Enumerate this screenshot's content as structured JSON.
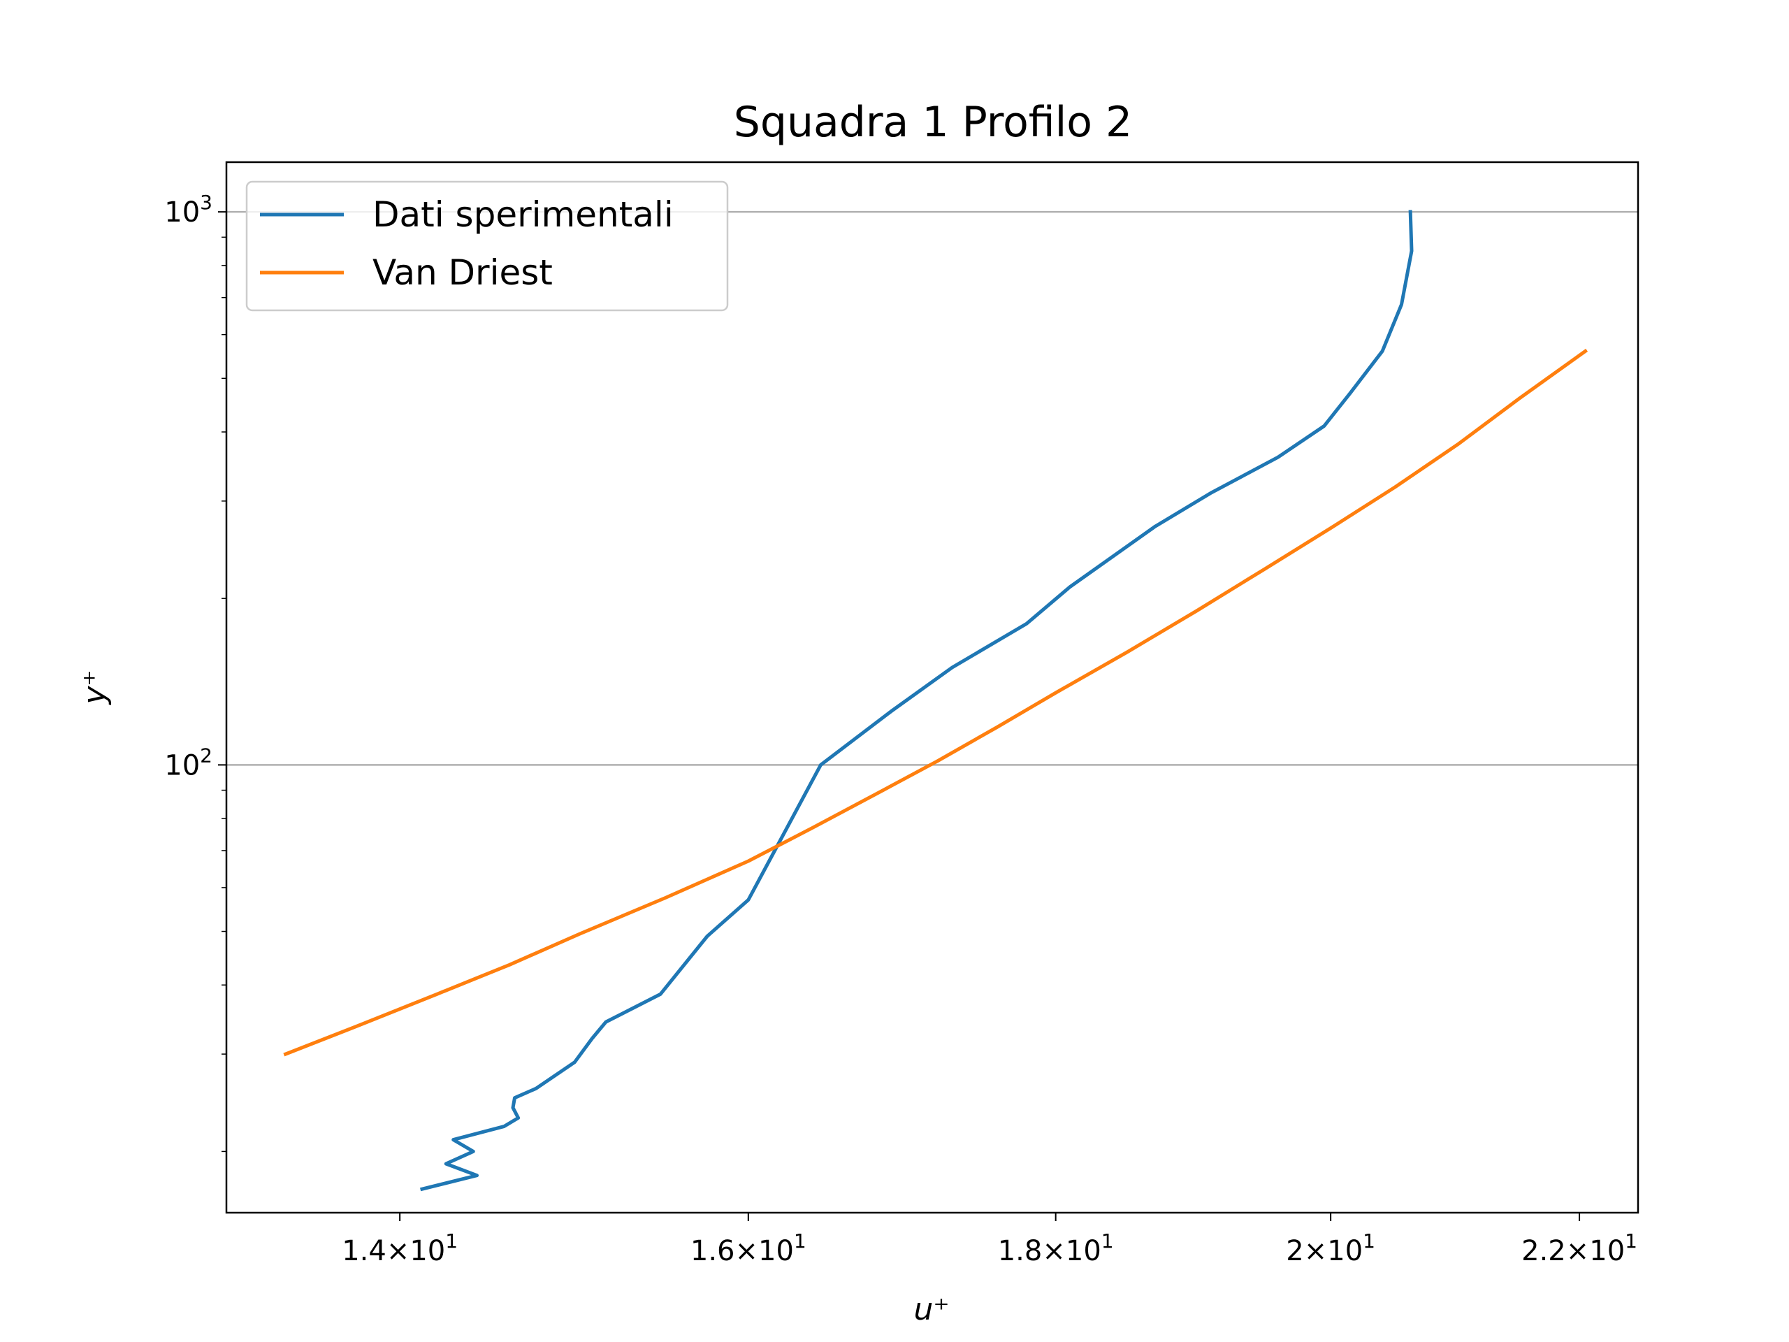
{
  "chart_data": {
    "type": "line",
    "title": "Squadra 1 Profilo 2",
    "xlabel": "u⁺",
    "ylabel": "y⁺",
    "xscale": "log",
    "yscale": "log",
    "xlim": [
      13.1,
      22.5
    ],
    "ylim": [
      15.5,
      1230
    ],
    "grid": "y-major",
    "legend_position": "top-left",
    "x_ticks": [
      {
        "value": 14,
        "mantissa": "1.4",
        "base": "10",
        "exp": "1"
      },
      {
        "value": 16,
        "mantissa": "1.6",
        "base": "10",
        "exp": "1"
      },
      {
        "value": 18,
        "mantissa": "1.8",
        "base": "10",
        "exp": "1"
      },
      {
        "value": 20,
        "mantissa": "2",
        "base": "10",
        "exp": "1"
      },
      {
        "value": 22,
        "mantissa": "2.2",
        "base": "10",
        "exp": "1"
      }
    ],
    "y_ticks": [
      {
        "value": 100,
        "base": "10",
        "exp": "2"
      },
      {
        "value": 1000,
        "base": "10",
        "exp": "3"
      }
    ],
    "series": [
      {
        "name": "Dati sperimentali",
        "color": "#1f77b4",
        "points": [
          [
            14.12,
            17.1
          ],
          [
            14.42,
            18.1
          ],
          [
            14.25,
            19.0
          ],
          [
            14.4,
            20.0
          ],
          [
            14.29,
            21.0
          ],
          [
            14.57,
            22.2
          ],
          [
            14.65,
            23.0
          ],
          [
            14.62,
            24.0
          ],
          [
            14.63,
            25.0
          ],
          [
            14.75,
            26.0
          ],
          [
            14.97,
            29.0
          ],
          [
            15.07,
            32.0
          ],
          [
            15.15,
            34.3
          ],
          [
            15.47,
            38.5
          ],
          [
            15.75,
            49.0
          ],
          [
            16.0,
            57.0
          ],
          [
            16.45,
            100.0
          ],
          [
            16.9,
            125.0
          ],
          [
            17.3,
            150.0
          ],
          [
            17.8,
            180.0
          ],
          [
            18.1,
            210.0
          ],
          [
            18.7,
            270.0
          ],
          [
            19.1,
            310.0
          ],
          [
            19.6,
            360.0
          ],
          [
            19.95,
            410.0
          ],
          [
            20.15,
            470.0
          ],
          [
            20.4,
            560.0
          ],
          [
            20.55,
            680.0
          ],
          [
            20.63,
            850.0
          ],
          [
            20.62,
            1000.0
          ]
        ]
      },
      {
        "name": "Van Driest",
        "color": "#ff7f0e",
        "points": [
          [
            13.4,
            30.0
          ],
          [
            13.8,
            34.0
          ],
          [
            14.2,
            38.5
          ],
          [
            14.6,
            43.5
          ],
          [
            15.0,
            49.5
          ],
          [
            15.5,
            57.5
          ],
          [
            16.0,
            67.0
          ],
          [
            16.4,
            77.0
          ],
          [
            16.8,
            88.5
          ],
          [
            17.2,
            101.5
          ],
          [
            17.6,
            117.0
          ],
          [
            18.0,
            135.0
          ],
          [
            18.5,
            160.0
          ],
          [
            19.0,
            190.0
          ],
          [
            19.5,
            226.0
          ],
          [
            20.0,
            268.0
          ],
          [
            20.5,
            318.0
          ],
          [
            21.0,
            380.0
          ],
          [
            21.5,
            460.0
          ],
          [
            22.05,
            560.0
          ]
        ]
      }
    ]
  }
}
